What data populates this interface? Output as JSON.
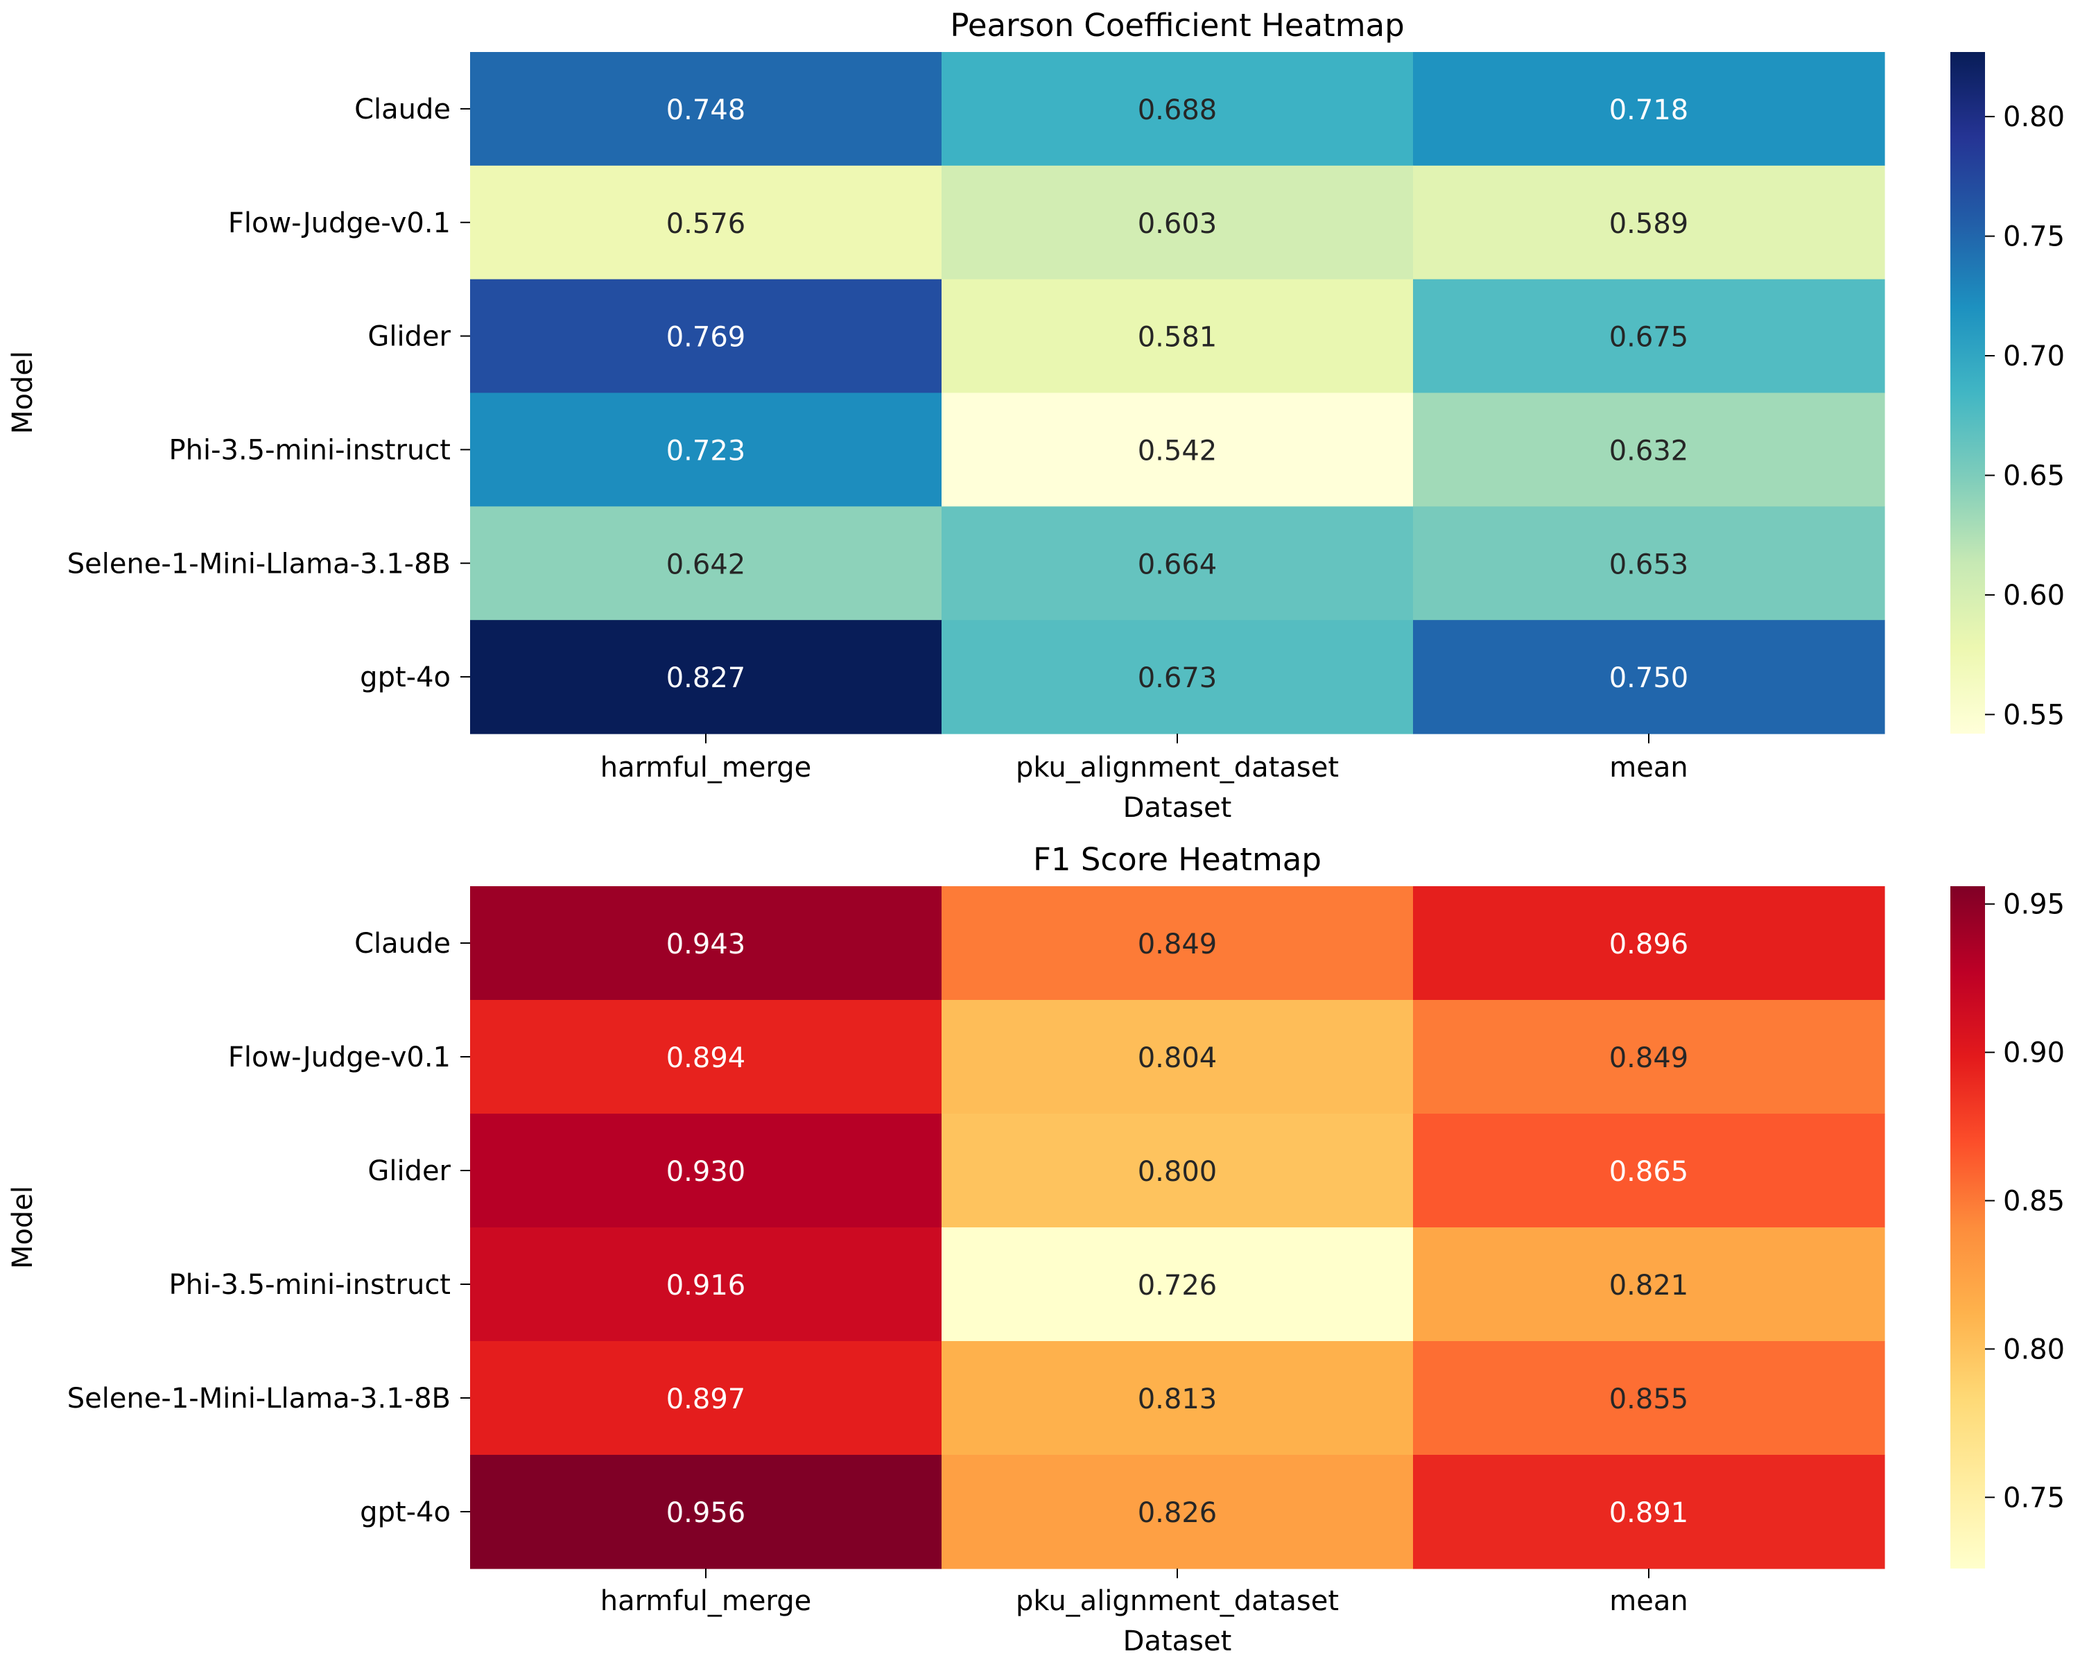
{
  "chart_data": [
    {
      "type": "heatmap",
      "title": "Pearson Coefficient Heatmap",
      "xlabel": "Dataset",
      "ylabel": "Model",
      "x": [
        "harmful_merge",
        "pku_alignment_dataset",
        "mean"
      ],
      "y": [
        "Claude",
        "Flow-Judge-v0.1",
        "Glider",
        "Phi-3.5-mini-instruct",
        "Selene-1-Mini-Llama-3.1-8B",
        "gpt-4o"
      ],
      "values": [
        [
          0.748,
          0.688,
          0.718
        ],
        [
          0.576,
          0.603,
          0.589
        ],
        [
          0.769,
          0.581,
          0.675
        ],
        [
          0.723,
          0.542,
          0.632
        ],
        [
          0.642,
          0.664,
          0.653
        ],
        [
          0.827,
          0.673,
          0.75
        ]
      ],
      "cell_labels": [
        [
          "0.748",
          "0.688",
          "0.718"
        ],
        [
          "0.576",
          "0.603",
          "0.589"
        ],
        [
          "0.769",
          "0.581",
          "0.675"
        ],
        [
          "0.723",
          "0.542",
          "0.632"
        ],
        [
          "0.642",
          "0.664",
          "0.653"
        ],
        [
          "0.827",
          "0.673",
          "0.750"
        ]
      ],
      "colormap": "YlGnBu",
      "colormap_stops": [
        "#ffffd9",
        "#edf8b1",
        "#c7e9b4",
        "#7fcdbb",
        "#41b6c4",
        "#1d91c0",
        "#225ea8",
        "#253494",
        "#081d58"
      ],
      "vmin": 0.542,
      "vmax": 0.827,
      "colorbar_ticks": [
        0.55,
        0.6,
        0.65,
        0.7,
        0.75,
        0.8
      ],
      "colorbar_tick_labels": [
        "0.55",
        "0.60",
        "0.65",
        "0.70",
        "0.75",
        "0.80"
      ]
    },
    {
      "type": "heatmap",
      "title": "F1 Score Heatmap",
      "xlabel": "Dataset",
      "ylabel": "Model",
      "x": [
        "harmful_merge",
        "pku_alignment_dataset",
        "mean"
      ],
      "y": [
        "Claude",
        "Flow-Judge-v0.1",
        "Glider",
        "Phi-3.5-mini-instruct",
        "Selene-1-Mini-Llama-3.1-8B",
        "gpt-4o"
      ],
      "values": [
        [
          0.943,
          0.849,
          0.896
        ],
        [
          0.894,
          0.804,
          0.849
        ],
        [
          0.93,
          0.8,
          0.865
        ],
        [
          0.916,
          0.726,
          0.821
        ],
        [
          0.897,
          0.813,
          0.855
        ],
        [
          0.956,
          0.826,
          0.891
        ]
      ],
      "cell_labels": [
        [
          "0.943",
          "0.849",
          "0.896"
        ],
        [
          "0.894",
          "0.804",
          "0.849"
        ],
        [
          "0.930",
          "0.800",
          "0.865"
        ],
        [
          "0.916",
          "0.726",
          "0.821"
        ],
        [
          "0.897",
          "0.813",
          "0.855"
        ],
        [
          "0.956",
          "0.826",
          "0.891"
        ]
      ],
      "colormap": "YlOrRd",
      "colormap_stops": [
        "#ffffcc",
        "#ffeda0",
        "#fed976",
        "#feb24c",
        "#fd8d3c",
        "#fc4e2a",
        "#e31a1c",
        "#bd0026",
        "#800026"
      ],
      "vmin": 0.726,
      "vmax": 0.956,
      "colorbar_ticks": [
        0.75,
        0.8,
        0.85,
        0.9,
        0.95
      ],
      "colorbar_tick_labels": [
        "0.75",
        "0.80",
        "0.85",
        "0.90",
        "0.95"
      ]
    }
  ]
}
